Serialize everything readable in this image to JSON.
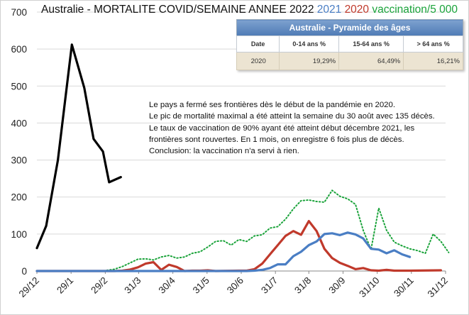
{
  "title": {
    "prefix": "Australie - MORTALITE COVID/SEMAINE ANNEE 2022 ",
    "y2021": "2021",
    "y2020": "2020",
    "vaccination": "vaccination/5 000"
  },
  "pyramid": {
    "title": "Australie - Pyramide des âges",
    "headers": [
      "Date",
      "0-14 ans %",
      "15-64 ans %",
      "> 64 ans %"
    ],
    "row": [
      "2020",
      "19,29%",
      "64,49%",
      "16,21%"
    ]
  },
  "annotation": [
    "Le pays a fermé ses frontières dès le début de la pandémie en 2020.",
    "Le pic de mortalité maximal a été atteint la semaine du 30 août avec 135 décès.",
    "Le taux de vaccination de 90% ayant été atteint début décembre 2021, les",
    "frontières sont rouvertes. En 1 mois, on enregistre 6 fois plus de décès.",
    "Conclusion: la vaccination n'a servi à rien."
  ],
  "colors": {
    "s2022": "#000000",
    "s2021": "#4a7ec4",
    "s2020": "#c0392b",
    "vaccination": "#1aa33a"
  },
  "chart_data": {
    "type": "line",
    "title": "Australie - MORTALITE COVID/SEMAINE ANNEE 2022 2021 2020 vaccination/5 000",
    "ylim": [
      0,
      700
    ],
    "yticks": [
      0,
      100,
      200,
      300,
      400,
      500,
      600,
      700
    ],
    "xlim": [
      0,
      52
    ],
    "x_tick_labels": [
      "29/12",
      "29/1",
      "29/2",
      "31/3",
      "30/4",
      "31/5",
      "30/6",
      "31/7",
      "31/8",
      "30/9",
      "31/10",
      "30/11",
      "31/12"
    ],
    "x_tick_weeks": [
      0,
      4.4,
      8.8,
      13.1,
      17.5,
      21.9,
      26.3,
      30.7,
      35.0,
      39.4,
      43.8,
      48.2,
      52.6
    ],
    "grid": true,
    "series": [
      {
        "name": "2022",
        "color_key": "s2022",
        "style": "solid",
        "points": [
          [
            0,
            62
          ],
          [
            1.2,
            122
          ],
          [
            2.7,
            300
          ],
          [
            4.5,
            612
          ],
          [
            6.1,
            495
          ],
          [
            7.3,
            357
          ],
          [
            8.5,
            323
          ],
          [
            9.3,
            240
          ],
          [
            10.8,
            254
          ]
        ]
      },
      {
        "name": "2021",
        "color_key": "s2021",
        "style": "solid",
        "points": [
          [
            0,
            0
          ],
          [
            2,
            0
          ],
          [
            4,
            0
          ],
          [
            6,
            0
          ],
          [
            8,
            0
          ],
          [
            10,
            0
          ],
          [
            12,
            0
          ],
          [
            14,
            0
          ],
          [
            16,
            0
          ],
          [
            18,
            0
          ],
          [
            20,
            0
          ],
          [
            22,
            0
          ],
          [
            24,
            0
          ],
          [
            26,
            0
          ],
          [
            27,
            0
          ],
          [
            28,
            1
          ],
          [
            29,
            3
          ],
          [
            30,
            8
          ],
          [
            31,
            18
          ],
          [
            32,
            18
          ],
          [
            33,
            40
          ],
          [
            34,
            52
          ],
          [
            35,
            70
          ],
          [
            36,
            80
          ],
          [
            37,
            100
          ],
          [
            38,
            102
          ],
          [
            39,
            97
          ],
          [
            40,
            104
          ],
          [
            41,
            99
          ],
          [
            42,
            88
          ],
          [
            43,
            60
          ],
          [
            44,
            58
          ],
          [
            45,
            48
          ],
          [
            46,
            56
          ],
          [
            47,
            45
          ],
          [
            48,
            38
          ]
        ]
      },
      {
        "name": "2020",
        "color_key": "s2020",
        "style": "solid",
        "points": [
          [
            0,
            0
          ],
          [
            10,
            0
          ],
          [
            11,
            1
          ],
          [
            12,
            4
          ],
          [
            13,
            10
          ],
          [
            14,
            20
          ],
          [
            15,
            24
          ],
          [
            16,
            3
          ],
          [
            17,
            17
          ],
          [
            18,
            11
          ],
          [
            19,
            0
          ],
          [
            20,
            1
          ],
          [
            21,
            1
          ],
          [
            22,
            2
          ],
          [
            23,
            0
          ],
          [
            26,
            1
          ],
          [
            27,
            1
          ],
          [
            28,
            5
          ],
          [
            29,
            20
          ],
          [
            30,
            45
          ],
          [
            31,
            70
          ],
          [
            32,
            95
          ],
          [
            33,
            108
          ],
          [
            34,
            98
          ],
          [
            35,
            135
          ],
          [
            36,
            108
          ],
          [
            37,
            60
          ],
          [
            38,
            35
          ],
          [
            39,
            22
          ],
          [
            40,
            14
          ],
          [
            41,
            5
          ],
          [
            42,
            8
          ],
          [
            43,
            2
          ],
          [
            44,
            1
          ],
          [
            45,
            3
          ],
          [
            46,
            1
          ],
          [
            48,
            1
          ],
          [
            52,
            2
          ]
        ]
      },
      {
        "name": "vaccination/5 000",
        "color_key": "vaccination",
        "style": "dotted",
        "points": [
          [
            9,
            2
          ],
          [
            10,
            5
          ],
          [
            11,
            12
          ],
          [
            12,
            22
          ],
          [
            13,
            32
          ],
          [
            14,
            33
          ],
          [
            15,
            30
          ],
          [
            16,
            38
          ],
          [
            17,
            42
          ],
          [
            18,
            35
          ],
          [
            19,
            38
          ],
          [
            20,
            48
          ],
          [
            21,
            52
          ],
          [
            22,
            65
          ],
          [
            23,
            80
          ],
          [
            24,
            82
          ],
          [
            25,
            70
          ],
          [
            26,
            85
          ],
          [
            27,
            80
          ],
          [
            28,
            95
          ],
          [
            29,
            98
          ],
          [
            30,
            116
          ],
          [
            31,
            120
          ],
          [
            32,
            140
          ],
          [
            33,
            168
          ],
          [
            34,
            190
          ],
          [
            35,
            192
          ],
          [
            36,
            188
          ],
          [
            37,
            186
          ],
          [
            38,
            218
          ],
          [
            39,
            202
          ],
          [
            40,
            195
          ],
          [
            41,
            180
          ],
          [
            42,
            110
          ],
          [
            43,
            58
          ],
          [
            44,
            170
          ],
          [
            45,
            110
          ],
          [
            46,
            78
          ],
          [
            47,
            68
          ],
          [
            48,
            60
          ],
          [
            49,
            55
          ],
          [
            50,
            48
          ],
          [
            51,
            100
          ],
          [
            52,
            80
          ],
          [
            53,
            50
          ]
        ]
      }
    ]
  }
}
